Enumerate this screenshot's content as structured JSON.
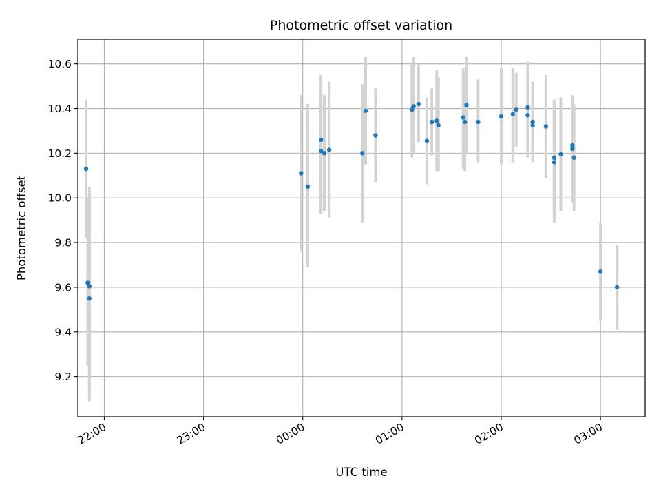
{
  "chart_data": {
    "type": "scatter",
    "title": "Photometric offset variation",
    "xlabel": "UTC time",
    "ylabel": "Photometric offset",
    "x_unit": "UTC hh:mm (times after 24:00 fall on the next day)",
    "xlim": [
      "21:44",
      "03:27"
    ],
    "ylim": [
      9.02,
      10.71
    ],
    "x_ticks": [
      "22:00",
      "23:00",
      "00:00",
      "01:00",
      "02:00",
      "03:00"
    ],
    "y_ticks": [
      9.2,
      9.4,
      9.6,
      9.8,
      10.0,
      10.2,
      10.4,
      10.6
    ],
    "grid": true,
    "colors": {
      "points": "#1f77b4",
      "error_bars": "#d3d3d3"
    },
    "series": [
      {
        "points": [
          {
            "x": "21:49",
            "y": 10.13,
            "ylo": 9.82,
            "yhi": 10.44
          },
          {
            "x": "21:50",
            "y": 9.62,
            "ylo": 9.25,
            "yhi": 10.0
          },
          {
            "x": "21:51",
            "y": 9.605,
            "ylo": 9.16,
            "yhi": 10.05
          },
          {
            "x": "21:51",
            "y": 9.55,
            "ylo": 9.09,
            "yhi": 10.01
          },
          {
            "x": "23:59",
            "y": 10.11,
            "ylo": 9.76,
            "yhi": 10.46
          },
          {
            "x": "00:03",
            "y": 10.05,
            "ylo": 9.69,
            "yhi": 10.42
          },
          {
            "x": "00:11",
            "y": 10.26,
            "ylo": 9.93,
            "yhi": 10.55
          },
          {
            "x": "00:11",
            "y": 10.21,
            "ylo": 9.93,
            "yhi": 10.5
          },
          {
            "x": "00:13",
            "y": 10.2,
            "ylo": 9.94,
            "yhi": 10.46
          },
          {
            "x": "00:16",
            "y": 10.215,
            "ylo": 9.91,
            "yhi": 10.52
          },
          {
            "x": "00:36",
            "y": 10.2,
            "ylo": 9.89,
            "yhi": 10.51
          },
          {
            "x": "00:38",
            "y": 10.39,
            "ylo": 10.15,
            "yhi": 10.63
          },
          {
            "x": "00:44",
            "y": 10.28,
            "ylo": 10.07,
            "yhi": 10.49
          },
          {
            "x": "01:06",
            "y": 10.395,
            "ylo": 10.18,
            "yhi": 10.6
          },
          {
            "x": "01:07",
            "y": 10.41,
            "ylo": 10.2,
            "yhi": 10.63
          },
          {
            "x": "01:10",
            "y": 10.42,
            "ylo": 10.25,
            "yhi": 10.6
          },
          {
            "x": "01:15",
            "y": 10.255,
            "ylo": 10.06,
            "yhi": 10.45
          },
          {
            "x": "01:18",
            "y": 10.34,
            "ylo": 10.19,
            "yhi": 10.49
          },
          {
            "x": "01:21",
            "y": 10.345,
            "ylo": 10.12,
            "yhi": 10.57
          },
          {
            "x": "01:22",
            "y": 10.325,
            "ylo": 10.12,
            "yhi": 10.54
          },
          {
            "x": "01:37",
            "y": 10.36,
            "ylo": 10.13,
            "yhi": 10.58
          },
          {
            "x": "01:38",
            "y": 10.34,
            "ylo": 10.12,
            "yhi": 10.56
          },
          {
            "x": "01:39",
            "y": 10.415,
            "ylo": 10.2,
            "yhi": 10.63
          },
          {
            "x": "01:46",
            "y": 10.34,
            "ylo": 10.16,
            "yhi": 10.53
          },
          {
            "x": "02:00",
            "y": 10.365,
            "ylo": 10.15,
            "yhi": 10.58
          },
          {
            "x": "02:07",
            "y": 10.375,
            "ylo": 10.16,
            "yhi": 10.58
          },
          {
            "x": "02:09",
            "y": 10.395,
            "ylo": 10.23,
            "yhi": 10.56
          },
          {
            "x": "02:16",
            "y": 10.405,
            "ylo": 10.2,
            "yhi": 10.61
          },
          {
            "x": "02:16",
            "y": 10.37,
            "ylo": 10.18,
            "yhi": 10.56
          },
          {
            "x": "02:19",
            "y": 10.34,
            "ylo": 10.16,
            "yhi": 10.52
          },
          {
            "x": "02:19",
            "y": 10.325,
            "ylo": 10.2,
            "yhi": 10.44
          },
          {
            "x": "02:27",
            "y": 10.32,
            "ylo": 10.09,
            "yhi": 10.55
          },
          {
            "x": "02:32",
            "y": 10.18,
            "ylo": 9.92,
            "yhi": 10.44
          },
          {
            "x": "02:32",
            "y": 10.16,
            "ylo": 9.89,
            "yhi": 10.43
          },
          {
            "x": "02:36",
            "y": 10.195,
            "ylo": 9.94,
            "yhi": 10.45
          },
          {
            "x": "02:43",
            "y": 10.235,
            "ylo": 10.0,
            "yhi": 10.46
          },
          {
            "x": "02:43",
            "y": 10.22,
            "ylo": 9.98,
            "yhi": 10.45
          },
          {
            "x": "02:44",
            "y": 10.18,
            "ylo": 9.94,
            "yhi": 10.42
          },
          {
            "x": "03:00",
            "y": 9.67,
            "ylo": 9.45,
            "yhi": 9.89
          },
          {
            "x": "03:10",
            "y": 9.6,
            "ylo": 9.41,
            "yhi": 9.79
          }
        ]
      }
    ]
  }
}
